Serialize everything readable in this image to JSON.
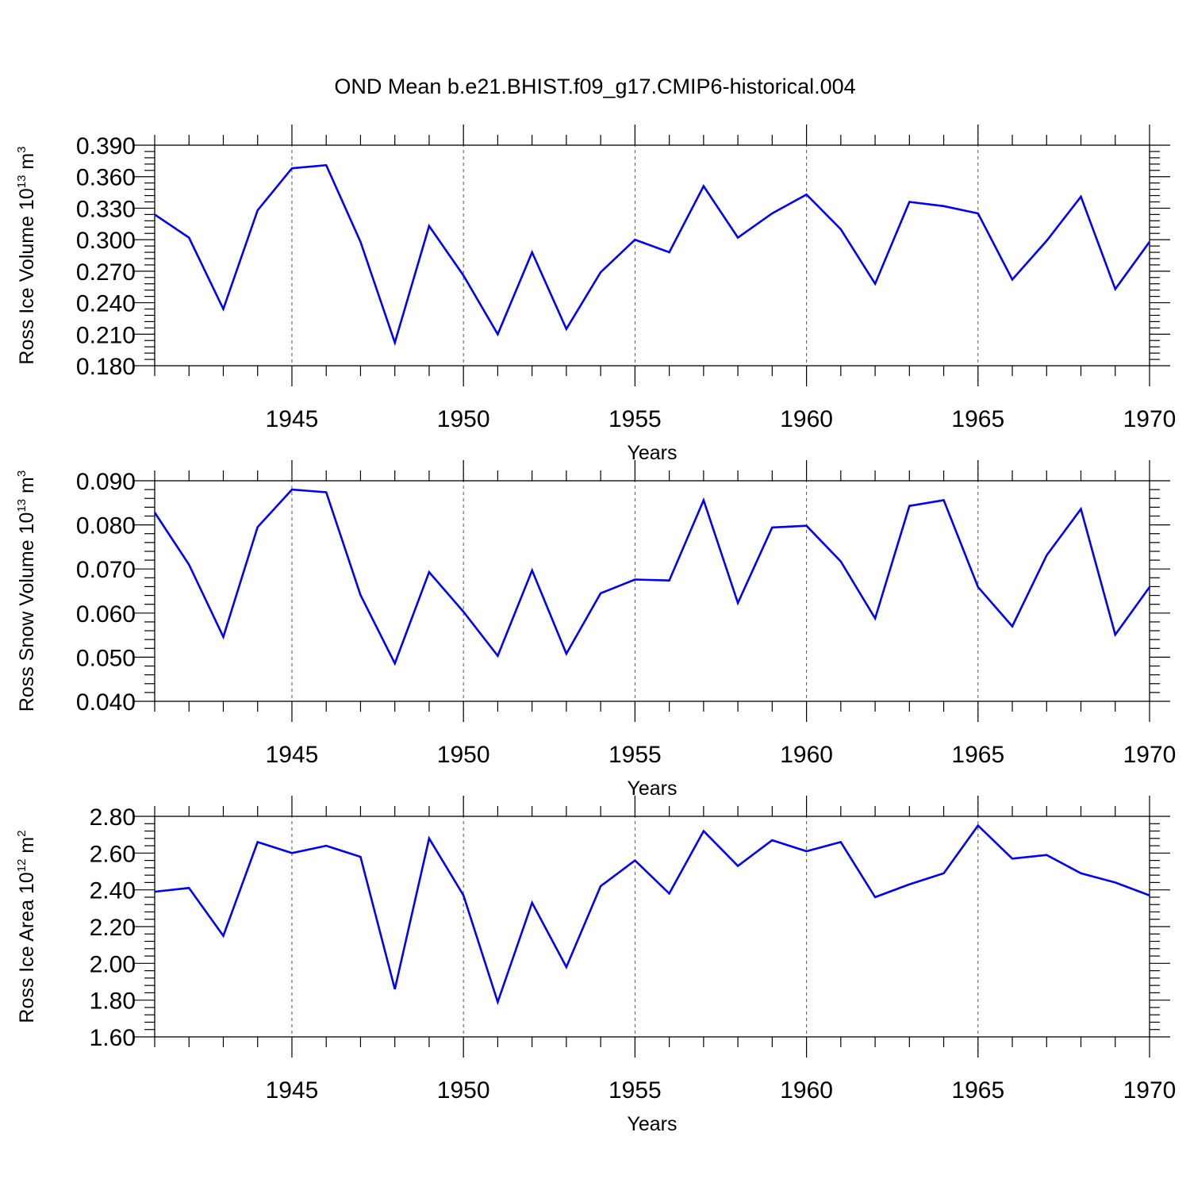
{
  "title": "OND Mean b.e21.BHIST.f09_g17.CMIP6-historical.004",
  "colors": {
    "line": "#0000ff",
    "axis": "#000000",
    "grid": "#555555"
  },
  "chart_data": [
    {
      "type": "line",
      "title": "OND Mean b.e21.BHIST.f09_g17.CMIP6-historical.004",
      "ylabel": {
        "text": "Ross Ice Volume 10",
        "exponent": "13",
        "unit": " m",
        "unit_exponent": "3"
      },
      "xlabel": "Years",
      "xlim": [
        1941,
        1970
      ],
      "ylim": [
        0.18,
        0.39
      ],
      "yticks": [
        "0.180",
        "0.210",
        "0.240",
        "0.270",
        "0.300",
        "0.330",
        "0.360",
        "0.390"
      ],
      "xticks": [
        "1945",
        "1950",
        "1955",
        "1960",
        "1965",
        "1970"
      ],
      "grid": "vertical dashed at major x ticks",
      "x": [
        1941,
        1942,
        1943,
        1944,
        1945,
        1946,
        1947,
        1948,
        1949,
        1950,
        1951,
        1952,
        1953,
        1954,
        1955,
        1956,
        1957,
        1958,
        1959,
        1960,
        1961,
        1962,
        1963,
        1964,
        1965,
        1966,
        1967,
        1968,
        1969,
        1970
      ],
      "values": [
        0.324,
        0.302,
        0.234,
        0.328,
        0.368,
        0.371,
        0.298,
        0.202,
        0.313,
        0.266,
        0.21,
        0.288,
        0.215,
        0.269,
        0.3,
        0.288,
        0.351,
        0.302,
        0.325,
        0.343,
        0.31,
        0.258,
        0.336,
        0.332,
        0.325,
        0.262,
        0.299,
        0.341,
        0.253,
        0.298
      ]
    },
    {
      "type": "line",
      "ylabel": {
        "text": "Ross Snow Volume 10",
        "exponent": "13",
        "unit": " m",
        "unit_exponent": "3"
      },
      "xlabel": "Years",
      "xlim": [
        1941,
        1970
      ],
      "ylim": [
        0.04,
        0.09
      ],
      "yticks": [
        "0.040",
        "0.050",
        "0.060",
        "0.070",
        "0.080",
        "0.090"
      ],
      "xticks": [
        "1945",
        "1950",
        "1955",
        "1960",
        "1965",
        "1970"
      ],
      "grid": "vertical dashed at major x ticks",
      "x": [
        1941,
        1942,
        1943,
        1944,
        1945,
        1946,
        1947,
        1948,
        1949,
        1950,
        1951,
        1952,
        1953,
        1954,
        1955,
        1956,
        1957,
        1958,
        1959,
        1960,
        1961,
        1962,
        1963,
        1964,
        1965,
        1966,
        1967,
        1968,
        1969,
        1970
      ],
      "values": [
        0.0828,
        0.071,
        0.0546,
        0.0795,
        0.088,
        0.0874,
        0.0641,
        0.0486,
        0.0693,
        0.0603,
        0.0503,
        0.0697,
        0.0508,
        0.0645,
        0.0676,
        0.0674,
        0.0856,
        0.0623,
        0.0794,
        0.0798,
        0.0717,
        0.0588,
        0.0843,
        0.0856,
        0.0659,
        0.057,
        0.0731,
        0.0836,
        0.0551,
        0.0659
      ]
    },
    {
      "type": "line",
      "ylabel": {
        "text": "Ross Ice Area 10",
        "exponent": "12",
        "unit": " m",
        "unit_exponent": "2"
      },
      "xlabel": "Years",
      "xlim": [
        1941,
        1970
      ],
      "ylim": [
        1.6,
        2.8
      ],
      "yticks": [
        "1.60",
        "1.80",
        "2.00",
        "2.20",
        "2.40",
        "2.60",
        "2.80"
      ],
      "xticks": [
        "1945",
        "1950",
        "1955",
        "1960",
        "1965",
        "1970"
      ],
      "grid": "vertical dashed at major x ticks",
      "x": [
        1941,
        1942,
        1943,
        1944,
        1945,
        1946,
        1947,
        1948,
        1949,
        1950,
        1951,
        1952,
        1953,
        1954,
        1955,
        1956,
        1957,
        1958,
        1959,
        1960,
        1961,
        1962,
        1963,
        1964,
        1965,
        1966,
        1967,
        1968,
        1969,
        1970
      ],
      "values": [
        2.39,
        2.41,
        2.15,
        2.66,
        2.6,
        2.64,
        2.58,
        1.86,
        2.68,
        2.37,
        1.79,
        2.33,
        1.98,
        2.42,
        2.56,
        2.38,
        2.72,
        2.53,
        2.67,
        2.61,
        2.66,
        2.36,
        2.43,
        2.49,
        2.75,
        2.57,
        2.59,
        2.49,
        2.44,
        2.37
      ]
    }
  ]
}
